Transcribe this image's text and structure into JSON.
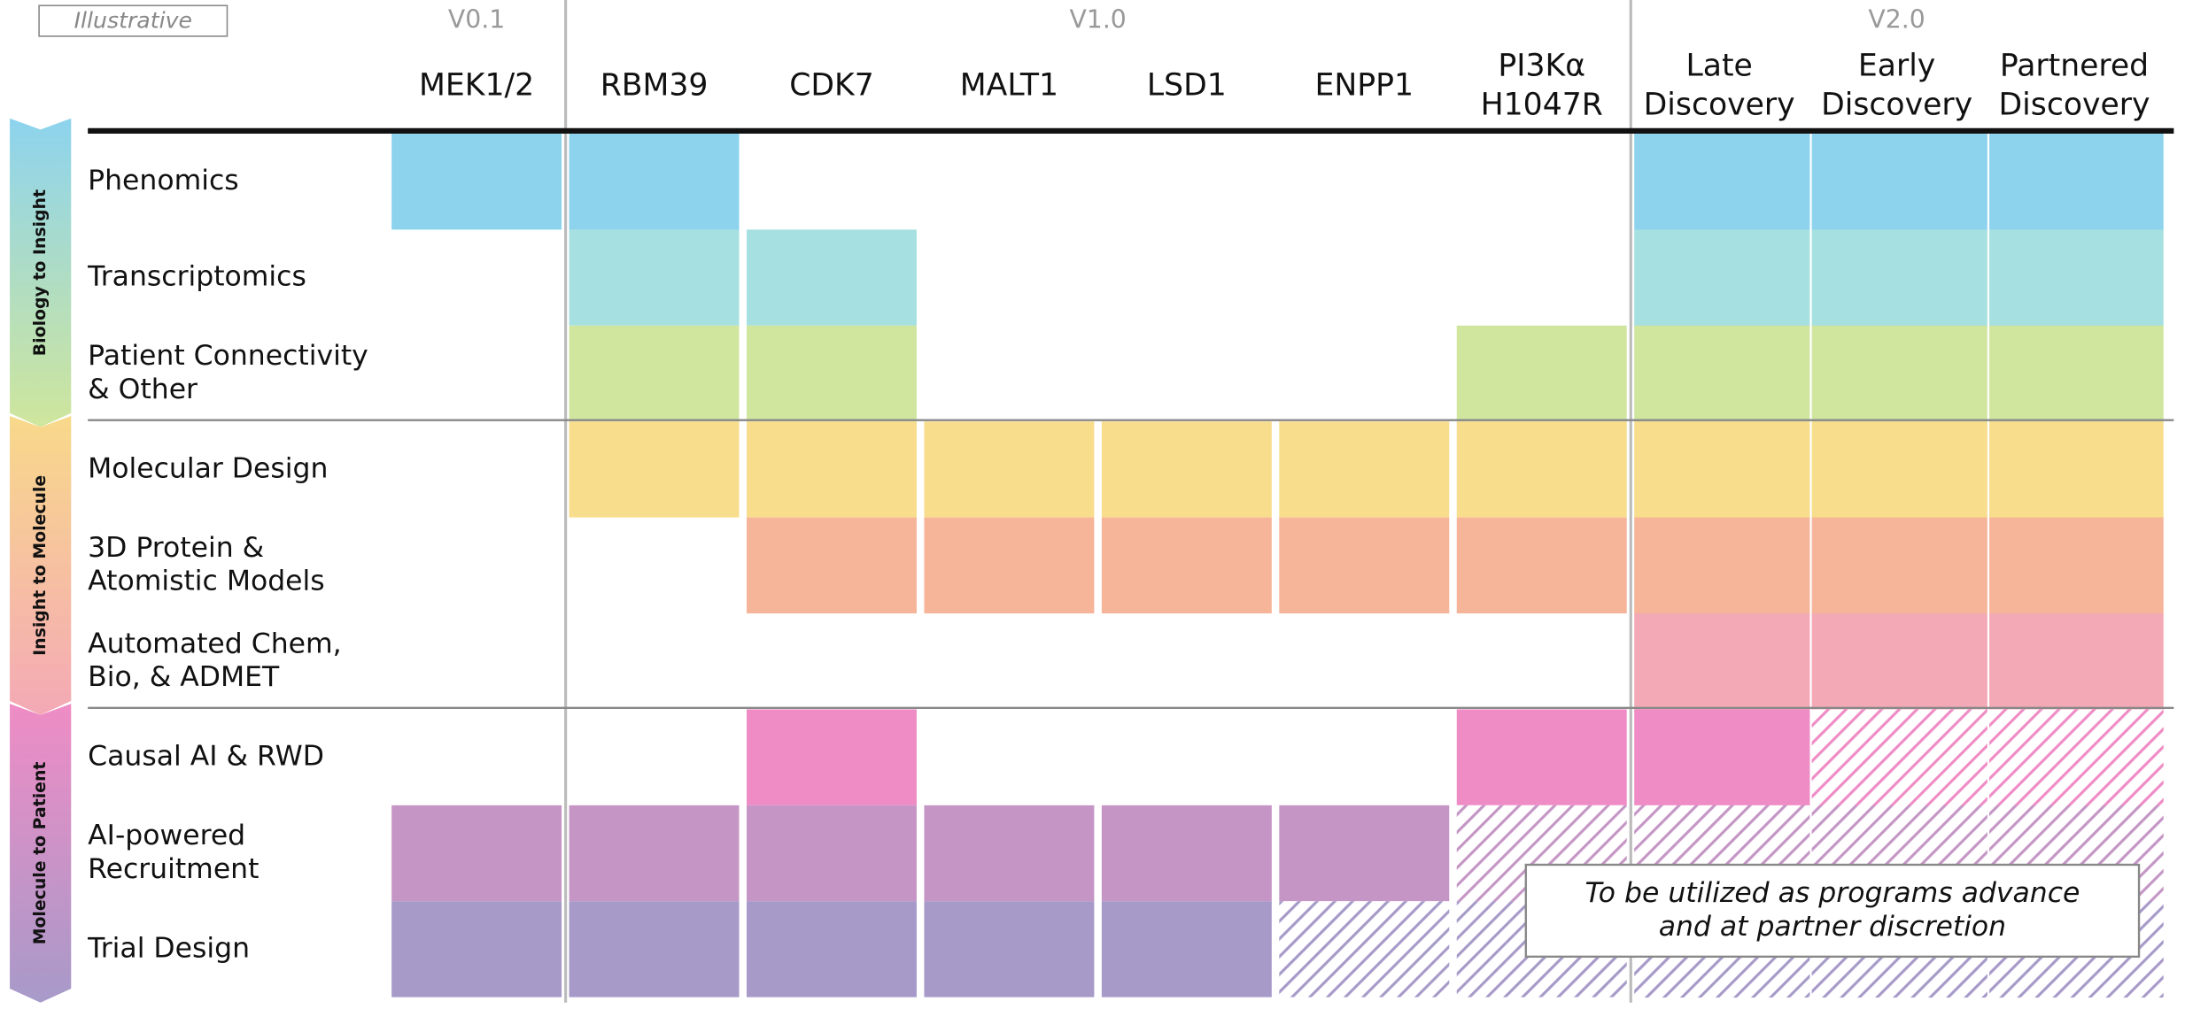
{
  "badge": "Illustrative",
  "groups": [
    {
      "label": "V0.1",
      "columns": [
        [
          "MEK1/2"
        ]
      ]
    },
    {
      "label": "V1.0",
      "columns": [
        [
          "RBM39"
        ],
        [
          "CDK7"
        ],
        [
          "MALT1"
        ],
        [
          "LSD1"
        ],
        [
          "ENPP1"
        ],
        [
          "PI3Kα",
          "H1047R"
        ]
      ]
    },
    {
      "label": "V2.0",
      "columns": [
        [
          "Late",
          "Discovery"
        ],
        [
          "Early",
          "Discovery"
        ],
        [
          "Partnered",
          "Discovery"
        ]
      ]
    }
  ],
  "sections": [
    {
      "label": "Biology to Insight",
      "colors": [
        "#8dd3ee",
        "#cfe69c"
      ],
      "rows": [
        {
          "label": [
            "Phenomics"
          ],
          "color": "#8dd3ee",
          "cells": [
            "full",
            "full",
            "none",
            "none",
            "none",
            "none",
            "none",
            "full",
            "full",
            "full"
          ]
        },
        {
          "label": [
            "Transcriptomics"
          ],
          "color": "#a6e0e0",
          "cells": [
            "none",
            "full",
            "full",
            "none",
            "none",
            "none",
            "none",
            "full",
            "full",
            "full"
          ]
        },
        {
          "label": [
            "Patient Connectivity",
            "& Other"
          ],
          "color": "#d0e69e",
          "cells": [
            "none",
            "full",
            "full",
            "none",
            "none",
            "none",
            "full",
            "full",
            "full",
            "full"
          ]
        }
      ]
    },
    {
      "label": "Insight to Molecule",
      "colors": [
        "#f8d98a",
        "#f4a9b6"
      ],
      "rows": [
        {
          "label": [
            "Molecular Design"
          ],
          "color": "#f8dd8c",
          "cells": [
            "none",
            "full",
            "full",
            "full",
            "full",
            "full",
            "full",
            "full",
            "full",
            "full"
          ]
        },
        {
          "label": [
            "3D Protein &",
            "Atomistic Models"
          ],
          "color": "#f6b499",
          "cells": [
            "none",
            "none",
            "full",
            "full",
            "full",
            "full",
            "full",
            "full",
            "full",
            "full"
          ]
        },
        {
          "label": [
            "Automated Chem,",
            "Bio, & ADMET"
          ],
          "color": "#f4a9b6",
          "cells": [
            "none",
            "none",
            "none",
            "none",
            "none",
            "none",
            "none",
            "full",
            "full",
            "full"
          ]
        }
      ]
    },
    {
      "label": "Molecule to Patient",
      "colors": [
        "#ef8cc5",
        "#a79ac9"
      ],
      "rows": [
        {
          "label": [
            "Causal AI & RWD"
          ],
          "color": "#ef8cc5",
          "cells": [
            "none",
            "none",
            "full",
            "none",
            "none",
            "none",
            "full",
            "full",
            "hatch",
            "hatch"
          ]
        },
        {
          "label": [
            "AI-powered",
            "Recruitment"
          ],
          "color": "#c596c5",
          "cells": [
            "full",
            "full",
            "full",
            "full",
            "full",
            "full",
            "hatch",
            "hatch",
            "hatch",
            "hatch"
          ]
        },
        {
          "label": [
            "Trial Design"
          ],
          "color": "#a79ac9",
          "cells": [
            "full",
            "full",
            "full",
            "full",
            "full",
            "hatch",
            "hatch",
            "hatch",
            "hatch",
            "hatch"
          ]
        }
      ]
    }
  ],
  "note": [
    "To be utilized as programs advance",
    "and at partner discretion"
  ]
}
